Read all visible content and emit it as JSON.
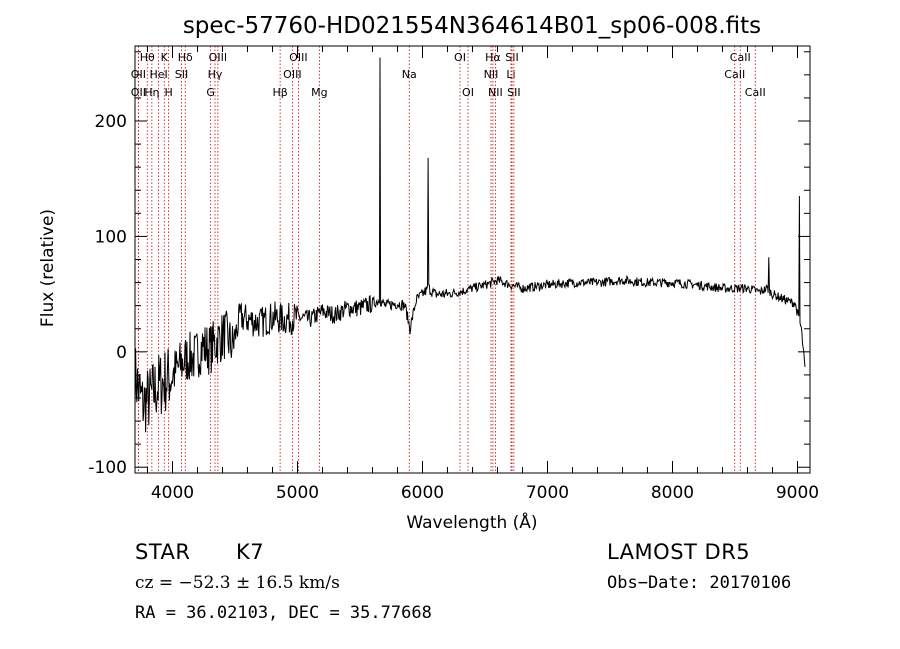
{
  "chart_data": {
    "type": "line",
    "title": "spec-57760-HD021554N364614B01_sp06-008.fits",
    "xlabel": "Wavelength (Å)",
    "ylabel": "Flux (relative)",
    "xlim": [
      3700,
      9100
    ],
    "ylim": [
      -105,
      265
    ],
    "xticks": [
      4000,
      5000,
      6000,
      7000,
      8000,
      9000
    ],
    "yticks": [
      -100,
      0,
      100,
      200
    ],
    "line_color": "#000000",
    "marker_color": "#cc0000",
    "spectrum": {
      "x": [
        3700,
        3760,
        3820,
        3880,
        3940,
        4000,
        4060,
        4120,
        4180,
        4240,
        4300,
        4360,
        4420,
        4480,
        4540,
        4600,
        4700,
        4800,
        4900,
        5000,
        5100,
        5200,
        5300,
        5400,
        5500,
        5600,
        5660,
        5700,
        5800,
        5860,
        5900,
        5950,
        6000,
        6050,
        6100,
        6200,
        6300,
        6400,
        6500,
        6560,
        6600,
        6700,
        6800,
        7000,
        7200,
        7400,
        7600,
        7800,
        8000,
        8200,
        8400,
        8600,
        8700,
        8760,
        8800,
        8900,
        8980,
        9030,
        9060
      ],
      "y": [
        -20,
        -45,
        -40,
        -30,
        -25,
        -20,
        -12,
        -5,
        -5,
        5,
        2,
        10,
        15,
        5,
        30,
        28,
        25,
        30,
        28,
        30,
        28,
        35,
        32,
        38,
        38,
        42,
        45,
        40,
        42,
        40,
        20,
        45,
        50,
        55,
        50,
        50,
        52,
        55,
        58,
        60,
        62,
        58,
        55,
        58,
        60,
        60,
        62,
        60,
        60,
        58,
        55,
        55,
        52,
        55,
        50,
        45,
        42,
        20,
        -15
      ],
      "spikes": [
        {
          "x": 5660,
          "y": 255
        },
        {
          "x": 6045,
          "y": 168
        },
        {
          "x": 8770,
          "y": 82
        },
        {
          "x": 9015,
          "y": 135
        }
      ]
    },
    "line_markers": [
      {
        "label": "Hθ",
        "x": 3798,
        "row": 0
      },
      {
        "label": "OII",
        "x": 3727,
        "row": 1
      },
      {
        "label": "OII",
        "x": 3727,
        "row": 2
      },
      {
        "label": "Hη",
        "x": 3835,
        "row": 2
      },
      {
        "label": "HeI",
        "x": 3889,
        "row": 1
      },
      {
        "label": "K",
        "x": 3934,
        "row": 0
      },
      {
        "label": "H",
        "x": 3969,
        "row": 2
      },
      {
        "label": "Hδ",
        "x": 4102,
        "row": 0
      },
      {
        "label": "SII",
        "x": 4072,
        "row": 1
      },
      {
        "label": "OIII",
        "x": 4363,
        "row": 0
      },
      {
        "label": "Hγ",
        "x": 4340,
        "row": 1
      },
      {
        "label": "G",
        "x": 4305,
        "row": 2
      },
      {
        "label": "Hβ",
        "x": 4861,
        "row": 2
      },
      {
        "label": "OIII",
        "x": 5007,
        "row": 0
      },
      {
        "label": "OIII",
        "x": 4959,
        "row": 1
      },
      {
        "label": "Mg",
        "x": 5175,
        "row": 2
      },
      {
        "label": "Na",
        "x": 5894,
        "row": 1
      },
      {
        "label": "OI",
        "x": 6300,
        "row": 0
      },
      {
        "label": "OI",
        "x": 6364,
        "row": 2
      },
      {
        "label": "Hα",
        "x": 6563,
        "row": 0
      },
      {
        "label": "SII",
        "x": 6716,
        "row": 0
      },
      {
        "label": "NII",
        "x": 6548,
        "row": 1
      },
      {
        "label": "Li",
        "x": 6708,
        "row": 1
      },
      {
        "label": "NII",
        "x": 6583,
        "row": 2
      },
      {
        "label": "SII",
        "x": 6731,
        "row": 2
      },
      {
        "label": "CaII",
        "x": 8542,
        "row": 0
      },
      {
        "label": "CaII",
        "x": 8498,
        "row": 1
      },
      {
        "label": "CaII",
        "x": 8662,
        "row": 2
      }
    ]
  },
  "info": {
    "object_type": "STAR",
    "subclass": "K7",
    "survey": "LAMOST  DR5",
    "cz": "cz = −52.3 ± 16.5 km/s",
    "obs_date": "Obs−Date: 20170106",
    "coords": "RA =  36.02103, DEC =  35.77668"
  }
}
